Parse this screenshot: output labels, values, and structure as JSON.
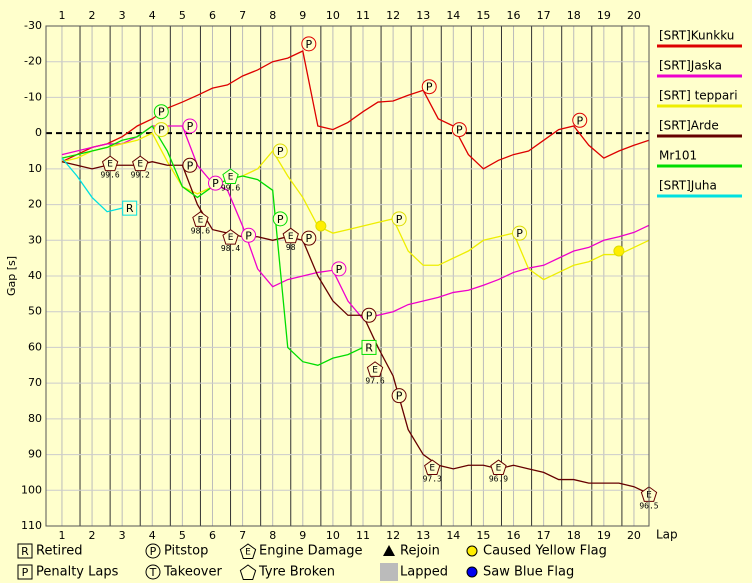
{
  "chart_data": {
    "type": "line",
    "xlabel": "Lap",
    "ylabel": "Gap [s]",
    "xlim": [
      0.47,
      20.5
    ],
    "xticks": [
      1,
      2,
      3,
      4,
      5,
      6,
      7,
      8,
      9,
      10,
      11,
      12,
      13,
      14,
      15,
      16,
      17,
      18,
      19,
      20
    ],
    "ylim": [
      -30,
      110
    ],
    "y_inverted": true,
    "yticks": [
      -30,
      -20,
      -10,
      0,
      10,
      20,
      30,
      40,
      50,
      60,
      70,
      80,
      90,
      100,
      110
    ],
    "zero_line": true,
    "grid": true,
    "x": [
      1,
      1.5,
      2,
      2.5,
      3,
      3.5,
      4,
      4.5,
      5,
      5.5,
      6,
      6.5,
      7,
      7.5,
      8,
      8.5,
      9,
      9.5,
      10,
      10.5,
      11,
      11.5,
      12,
      12.5,
      13,
      13.5,
      14,
      14.5,
      15,
      15.5,
      16,
      16.5,
      17,
      17.5,
      18,
      18.5,
      19,
      19.5,
      20,
      20.5
    ],
    "series": [
      {
        "name": "[SRT]Kunkku",
        "color": "#dd0000",
        "values": [
          8,
          6,
          4,
          3,
          1,
          -2,
          -4,
          -7,
          -8.7,
          -10.6,
          -12.6,
          -13.5,
          -16,
          -17.7,
          -20,
          -21,
          -23,
          -2,
          -1,
          -3,
          -6,
          -8.7,
          -9,
          -10.6,
          -12,
          -4,
          -2,
          6,
          10,
          7.6,
          6,
          5,
          2,
          -1,
          -2,
          3.4,
          7,
          5,
          3.4,
          2
        ]
      },
      {
        "name": "[SRT]Jaska",
        "color": "#ee00cc",
        "values": [
          6,
          5,
          4,
          3,
          3,
          1,
          -2,
          -2,
          -2,
          9,
          14,
          16,
          26,
          38,
          43,
          41,
          40,
          39,
          38.4,
          47,
          52,
          51,
          50,
          48,
          47,
          46,
          44.6,
          44,
          42.6,
          41,
          39,
          37.8,
          37,
          35,
          33,
          32,
          30,
          29,
          27.8,
          25.8
        ]
      },
      {
        "name": "[SRT] teppari",
        "color": "#eeee00",
        "values": [
          8,
          7,
          5,
          4,
          3,
          2,
          0,
          8,
          15,
          17,
          15,
          13,
          12,
          10,
          5,
          12,
          18,
          26,
          28,
          27,
          26,
          25,
          24,
          33,
          37,
          37,
          35,
          33,
          30,
          29,
          28,
          38,
          41,
          39,
          37,
          36,
          34,
          34,
          32,
          30
        ]
      },
      {
        "name": "[SRT]Arde",
        "color": "#660000",
        "values": [
          8,
          9,
          10,
          9,
          9,
          9,
          8,
          9,
          9,
          20,
          27,
          28,
          29,
          29,
          30,
          29,
          30,
          40,
          47,
          51,
          51,
          60,
          68,
          83,
          90,
          93,
          94,
          93,
          93,
          94,
          93,
          94,
          95,
          97,
          97,
          98,
          98,
          98,
          99,
          101
        ]
      },
      {
        "name": "Mr101",
        "color": "#00dd00",
        "values": [
          7,
          6,
          5,
          4,
          2,
          1,
          -2,
          5,
          15,
          18,
          15,
          13,
          12,
          13,
          16,
          60,
          64,
          65,
          63,
          62,
          60,
          null,
          null,
          null,
          null,
          null,
          null,
          null,
          null,
          null,
          null,
          null,
          null,
          null,
          null,
          null,
          null,
          null,
          null,
          null
        ]
      },
      {
        "name": "[SRT]Juha",
        "color": "#00e0e0",
        "values": [
          7,
          12,
          18,
          22,
          21,
          null,
          null,
          null,
          null,
          null,
          null,
          null,
          null,
          null,
          null,
          null,
          null,
          null,
          null,
          null,
          null,
          null,
          null,
          null,
          null,
          null,
          null,
          null,
          null,
          null,
          null,
          null,
          null,
          null,
          null,
          null,
          null,
          null,
          null,
          null
        ]
      }
    ],
    "event_types": [
      {
        "symbol": "R",
        "shape": "square",
        "label": "Retired",
        "events": [
          {
            "lap": 3.25,
            "gap": 21,
            "color": "#00e0e0"
          },
          {
            "lap": 11.2,
            "gap": 60,
            "color": "#00dd00"
          }
        ]
      },
      {
        "symbol": "P",
        "shape": "square",
        "label": "Penalty Laps",
        "events": []
      },
      {
        "symbol": "P",
        "shape": "circle",
        "label": "Pitstop",
        "events": [
          {
            "lap": 9.2,
            "gap": -25,
            "color": "#dd0000"
          },
          {
            "lap": 13.2,
            "gap": -13,
            "color": "#dd0000"
          },
          {
            "lap": 14.2,
            "gap": -1,
            "color": "#dd0000"
          },
          {
            "lap": 18.2,
            "gap": -3.6,
            "color": "#dd0000"
          },
          {
            "lap": 5.25,
            "gap": -2,
            "color": "#ee00cc"
          },
          {
            "lap": 6.1,
            "gap": 14,
            "color": "#ee00cc"
          },
          {
            "lap": 7.2,
            "gap": 28.6,
            "color": "#ee00cc"
          },
          {
            "lap": 10.2,
            "gap": 38,
            "color": "#ee00cc"
          },
          {
            "lap": 4.3,
            "gap": -1,
            "color": "#dddd00"
          },
          {
            "lap": 8.25,
            "gap": 5,
            "color": "#dddd00"
          },
          {
            "lap": 12.2,
            "gap": 24,
            "color": "#dddd00"
          },
          {
            "lap": 16.2,
            "gap": 28,
            "color": "#dddd00"
          },
          {
            "lap": 5.25,
            "gap": 9,
            "color": "#660000"
          },
          {
            "lap": 9.2,
            "gap": 29.4,
            "color": "#660000"
          },
          {
            "lap": 11.2,
            "gap": 51,
            "color": "#660000"
          },
          {
            "lap": 12.2,
            "gap": 73.5,
            "color": "#660000"
          },
          {
            "lap": 4.3,
            "gap": -6,
            "color": "#00dd00"
          },
          {
            "lap": 8.25,
            "gap": 24,
            "color": "#00dd00"
          }
        ]
      },
      {
        "symbol": "T",
        "shape": "circle",
        "label": "Takeover",
        "events": []
      },
      {
        "symbol": "E",
        "shape": "pentagon",
        "label": "Engine Damage",
        "events": [
          {
            "lap": 2.6,
            "gap": 8.4,
            "color": "#660000",
            "label": "99.6"
          },
          {
            "lap": 3.6,
            "gap": 8.4,
            "color": "#660000",
            "label": "99.2"
          },
          {
            "lap": 5.6,
            "gap": 24,
            "color": "#660000",
            "label": "98.6"
          },
          {
            "lap": 6.6,
            "gap": 29,
            "color": "#660000",
            "label": "98.4"
          },
          {
            "lap": 8.6,
            "gap": 28.6,
            "color": "#660000",
            "label": "98"
          },
          {
            "lap": 6.6,
            "gap": 12,
            "color": "#00dd00",
            "label": "99.6"
          },
          {
            "lap": 11.4,
            "gap": 66,
            "color": "#660000",
            "label": "97.6"
          },
          {
            "lap": 13.3,
            "gap": 93.5,
            "color": "#660000",
            "label": "97.3"
          },
          {
            "lap": 15.5,
            "gap": 93.5,
            "color": "#660000",
            "label": "96.9"
          },
          {
            "lap": 20.5,
            "gap": 101,
            "color": "#660000",
            "label": "96.5"
          }
        ]
      },
      {
        "shape": "pentagon",
        "label": "Tyre Broken",
        "events": []
      },
      {
        "shape": "triangle",
        "label": "Rejoin",
        "events": []
      },
      {
        "shape": "block",
        "color": "#bbbbbb",
        "label": "Lapped",
        "events": []
      },
      {
        "shape": "dot",
        "color": "#ffee00",
        "label": "Caused Yellow Flag",
        "events": [
          {
            "lap": 9.6,
            "gap": 26,
            "color": "#dddd00"
          },
          {
            "lap": 19.5,
            "gap": 33,
            "color": "#dddd00"
          }
        ]
      },
      {
        "shape": "dot",
        "color": "#0000ee",
        "label": "Saw Blue Flag",
        "events": []
      }
    ]
  }
}
